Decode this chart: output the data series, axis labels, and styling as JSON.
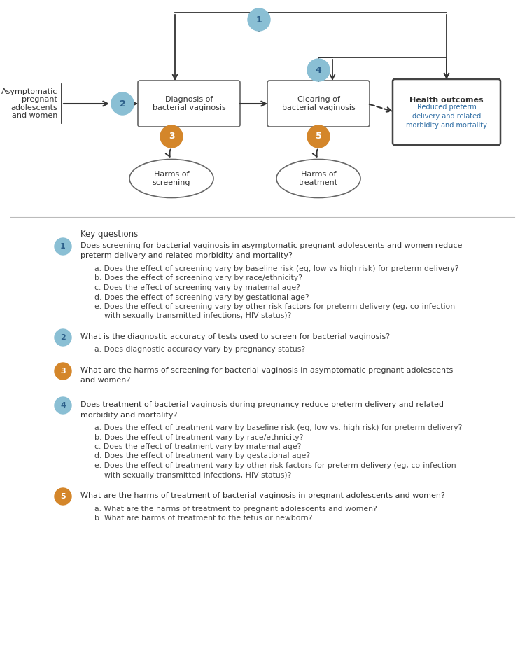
{
  "bg_color": "#ffffff",
  "light_blue": "#8abfd4",
  "orange": "#d4862a",
  "dark_text": "#333333",
  "blue_text": "#2e6da4",
  "key_questions_title": "Key questions",
  "questions": [
    {
      "number": "1",
      "color": "#8abfd4",
      "main_lines": [
        "Does screening for bacterial vaginosis in asymptomatic pregnant adolescents and women reduce",
        "preterm delivery and related morbidity and mortality?"
      ],
      "subs": [
        "a. Does the effect of screening vary by baseline risk (eg, low vs high risk) for preterm delivery?",
        "b. Does the effect of screening vary by race/ethnicity?",
        "c. Does the effect of screening vary by maternal age?",
        "d. Does the effect of screening vary by gestational age?",
        "e. Does the effect of screening vary by other risk factors for preterm delivery (eg, co-infection",
        "    with sexually transmitted infections, HIV status)?"
      ]
    },
    {
      "number": "2",
      "color": "#8abfd4",
      "main_lines": [
        "What is the diagnostic accuracy of tests used to screen for bacterial vaginosis?"
      ],
      "subs": [
        "a. Does diagnostic accuracy vary by pregnancy status?"
      ]
    },
    {
      "number": "3",
      "color": "#d4862a",
      "main_lines": [
        "What are the harms of screening for bacterial vaginosis in asymptomatic pregnant adolescents",
        "and women?"
      ],
      "subs": []
    },
    {
      "number": "4",
      "color": "#8abfd4",
      "main_lines": [
        "Does treatment of bacterial vaginosis during pregnancy reduce preterm delivery and related",
        "morbidity and mortality?"
      ],
      "subs": [
        "a. Does the effect of treatment vary by baseline risk (eg, low vs. high risk) for preterm delivery?",
        "b. Does the effect of treatment vary by race/ethnicity?",
        "c. Does the effect of treatment vary by maternal age?",
        "d. Does the effect of treatment vary by gestational age?",
        "e. Does the effect of treatment vary by other risk factors for preterm delivery (eg, co-infection",
        "    with sexually transmitted infections, HIV status)?"
      ]
    },
    {
      "number": "5",
      "color": "#d4862a",
      "main_lines": [
        "What are the harms of treatment of bacterial vaginosis in pregnant adolescents and women?"
      ],
      "subs": [
        "a. What are the harms of treatment to pregnant adolescents and women?",
        "b. What are harms of treatment to the fetus or newborn?"
      ]
    }
  ]
}
